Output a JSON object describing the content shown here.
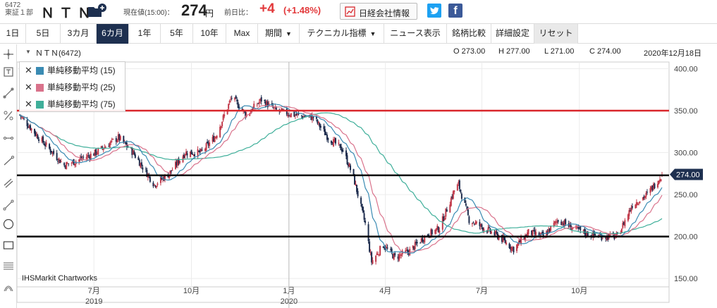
{
  "header": {
    "code": "6472",
    "market": "東証１部",
    "name": "ＮＴＮ",
    "price_label": "現在値(15:00)：",
    "price": "274",
    "price_unit": "円",
    "change_label": "前日比：",
    "change": "+4",
    "change_pct": "(+1.48%)",
    "nikkei_label": "日経会社情報",
    "twitter_icon": "twitter-icon",
    "facebook_icon": "facebook-icon",
    "facebook_glyph": "f"
  },
  "toolbar": {
    "periods": [
      "1日",
      "5日",
      "3カ月",
      "6カ月",
      "1年",
      "5年",
      "10年",
      "Max"
    ],
    "active_period": "6カ月",
    "interval": "期間",
    "technical": "テクニカル指標",
    "news": "ニュース表示",
    "compare": "銘柄比較",
    "settings": "詳細設定",
    "reset": "リセット"
  },
  "sidebar": {
    "tools": [
      "crosshair-icon",
      "zoom-box-icon",
      "line-icon",
      "percent-icon",
      "horizontal-line-icon",
      "trend-line-icon",
      "channel-icon",
      "arrow-line-icon",
      "circle-icon",
      "rectangle-icon",
      "fibonacci-icon",
      "wave-icon"
    ]
  },
  "legend": [
    {
      "label": "単純移動平均 (15)",
      "color": "#3a8bb3"
    },
    {
      "label": "単純移動平均 (25)",
      "color": "#d9728b"
    },
    {
      "label": "単純移動平均 (75)",
      "color": "#3faf9a"
    }
  ],
  "ohlc": {
    "symbol": "ＮＴＮ(6472)",
    "open": "O 273.00",
    "high": "H 277.00",
    "low": "L 271.00",
    "close": "C 274.00",
    "date": "2020年12月18日"
  },
  "credit": "IHSMarkit Chartworks",
  "colors": {
    "candle": "#1e2d4e",
    "up_candle": "#c23a4b",
    "ma15": "#3a8bb3",
    "ma25": "#d9728b",
    "ma75": "#3faf9a",
    "resistance": "#d9262b",
    "support": "#000000",
    "accent": "#1e3050"
  },
  "chart_data": {
    "type": "candlestick",
    "y_ticks": [
      "400.00",
      "350.00",
      "300.00",
      "250.00",
      "200.00",
      "150.00"
    ],
    "ylim": [
      140,
      408
    ],
    "last_price_label": "274.00",
    "x_ticks": [
      {
        "label": "7月",
        "sub": "2019",
        "date": "2019-07"
      },
      {
        "label": "10月",
        "sub": "",
        "date": "2019-10"
      },
      {
        "label": "1月",
        "sub": "2020",
        "date": "2020-01"
      },
      {
        "label": "4月",
        "sub": "",
        "date": "2020-04"
      },
      {
        "label": "7月",
        "sub": "",
        "date": "2020-07"
      },
      {
        "label": "10月",
        "sub": "",
        "date": "2020-10"
      }
    ],
    "horizontal_lines": [
      {
        "value": 350,
        "color": "#d9262b"
      },
      {
        "value": 273,
        "color": "#000000"
      },
      {
        "value": 200,
        "color": "#000000"
      }
    ],
    "close_keyframes": [
      [
        "2019-04-22",
        345
      ],
      [
        "2019-05-10",
        318
      ],
      [
        "2019-06-03",
        285
      ],
      [
        "2019-06-14",
        290
      ],
      [
        "2019-07-03",
        300
      ],
      [
        "2019-07-24",
        318
      ],
      [
        "2019-08-07",
        300
      ],
      [
        "2019-08-27",
        262
      ],
      [
        "2019-09-10",
        275
      ],
      [
        "2019-09-25",
        300
      ],
      [
        "2019-10-10",
        300
      ],
      [
        "2019-10-24",
        320
      ],
      [
        "2019-11-08",
        366
      ],
      [
        "2019-11-22",
        345
      ],
      [
        "2019-12-06",
        363
      ],
      [
        "2019-12-20",
        350
      ],
      [
        "2020-01-10",
        344
      ],
      [
        "2020-01-24",
        342
      ],
      [
        "2020-02-07",
        318
      ],
      [
        "2020-02-21",
        303
      ],
      [
        "2020-03-02",
        270
      ],
      [
        "2020-03-13",
        215
      ],
      [
        "2020-03-19",
        170
      ],
      [
        "2020-03-30",
        190
      ],
      [
        "2020-04-10",
        175
      ],
      [
        "2020-04-24",
        183
      ],
      [
        "2020-05-08",
        200
      ],
      [
        "2020-05-22",
        210
      ],
      [
        "2020-06-05",
        255
      ],
      [
        "2020-06-09",
        262
      ],
      [
        "2020-06-19",
        220
      ],
      [
        "2020-07-03",
        210
      ],
      [
        "2020-07-17",
        200
      ],
      [
        "2020-07-31",
        185
      ],
      [
        "2020-08-14",
        205
      ],
      [
        "2020-08-28",
        200
      ],
      [
        "2020-09-11",
        220
      ],
      [
        "2020-09-25",
        210
      ],
      [
        "2020-10-09",
        203
      ],
      [
        "2020-10-23",
        200
      ],
      [
        "2020-11-06",
        200
      ],
      [
        "2020-11-20",
        238
      ],
      [
        "2020-12-04",
        250
      ],
      [
        "2020-12-18",
        274
      ]
    ]
  }
}
